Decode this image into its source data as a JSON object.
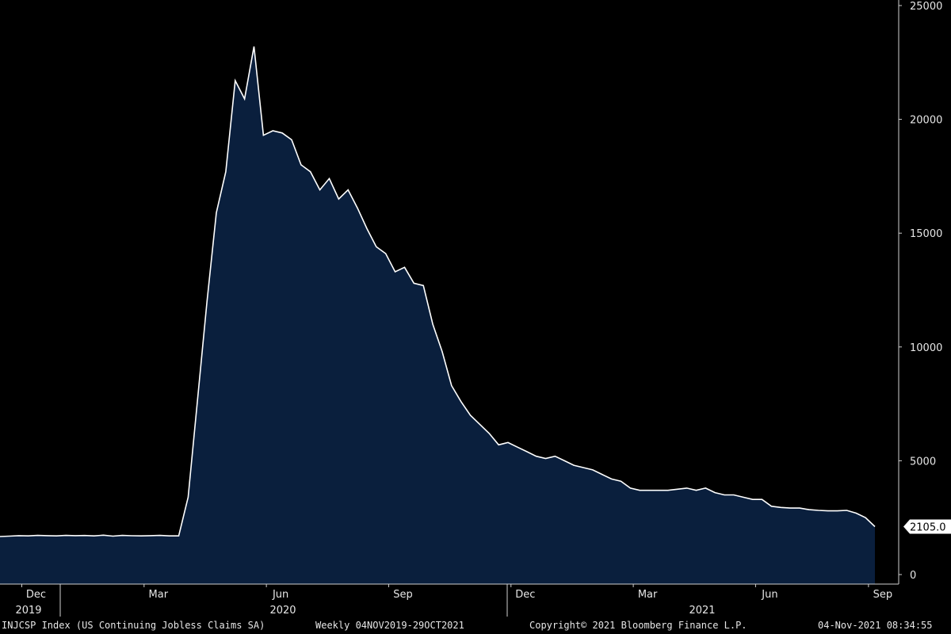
{
  "chart_data": {
    "type": "area",
    "title": "",
    "xlabel": "",
    "ylabel": "",
    "ylim": [
      0,
      25000
    ],
    "yticks": [
      0,
      5000,
      10000,
      15000,
      20000,
      25000
    ],
    "y_axis_side": "right",
    "grid": false,
    "colors": {
      "background": "#000000",
      "fill": "#0a1f3d",
      "line": "#ffffff",
      "text": "#e6e6e6"
    },
    "x_month_ticks": [
      "Dec",
      "Mar",
      "Jun",
      "Sep",
      "Dec",
      "Mar",
      "Jun",
      "Sep"
    ],
    "x_year_labels": [
      "2019",
      "2020",
      "2021"
    ],
    "series": [
      {
        "values": [
          1670,
          1690,
          1710,
          1700,
          1720,
          1710,
          1700,
          1720,
          1710,
          1715,
          1700,
          1730,
          1690,
          1720,
          1705,
          1700,
          1710,
          1720,
          1700,
          1700,
          3400,
          7700,
          12000,
          15900,
          17700,
          21700,
          20900,
          23200,
          19300,
          19500,
          19400,
          19100,
          18000,
          17700,
          16900,
          17400,
          16500,
          16900,
          16100,
          15200,
          14400,
          14100,
          13300,
          13500,
          12800,
          12700,
          11000,
          9800,
          8300,
          7600,
          7000,
          6600,
          6200,
          5700,
          5800,
          5600,
          5400,
          5200,
          5100,
          5200,
          5000,
          4800,
          4700,
          4600,
          4400,
          4200,
          4100,
          3800,
          3700,
          3700,
          3700,
          3700,
          3750,
          3800,
          3700,
          3800,
          3600,
          3500,
          3500,
          3400,
          3300,
          3300,
          3000,
          2950,
          2920,
          2920,
          2850,
          2820,
          2800,
          2800,
          2820,
          2700,
          2500,
          2105
        ]
      }
    ],
    "last_value_label": "2105.0"
  },
  "footer": {
    "ticker": "INJCSP Index (US Continuing Jobless Claims SA)",
    "frequency": "Weekly 04NOV2019-29OCT2021",
    "copyright": "Copyright© 2021 Bloomberg Finance L.P.",
    "timestamp": "04-Nov-2021 08:34:55"
  }
}
